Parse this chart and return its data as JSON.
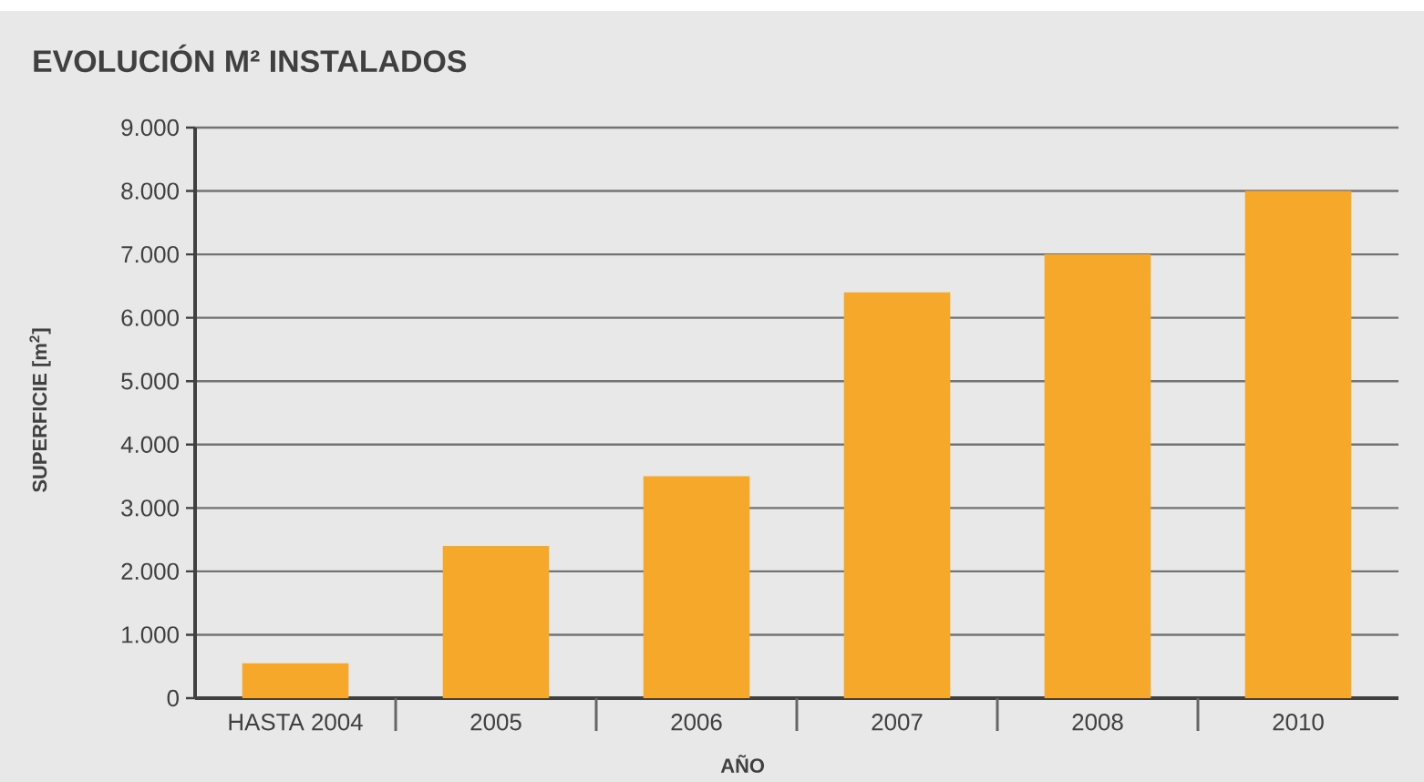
{
  "chart_data": {
    "type": "bar",
    "title": "EVOLUCIÓN M² INSTALADOS",
    "xlabel": "AÑO",
    "ylabel": "SUPERFICIE [m$^{2}$]",
    "categories": [
      "HASTA 2004",
      "2005",
      "2006",
      "2007",
      "2008",
      "2010"
    ],
    "values": [
      550,
      2400,
      3500,
      6400,
      7000,
      8000
    ],
    "color": "#f5a82a",
    "ylim": [
      0,
      9000
    ],
    "yticks": [
      0,
      {
        "value": 1000,
        "label": "1.000"
      },
      {
        "value": 2000,
        "label": "2.000"
      },
      {
        "value": 3000,
        "label": "3.000"
      },
      {
        "value": 4000,
        "label": "4.000"
      },
      {
        "value": 5000,
        "label": "5.000"
      },
      {
        "value": 6000,
        "label": "6.000"
      },
      {
        "value": 7000,
        "label": "7.000"
      },
      {
        "value": 8000,
        "label": "8.000"
      },
      {
        "value": 9000,
        "label": "9.000"
      }
    ],
    "grid": "y"
  }
}
